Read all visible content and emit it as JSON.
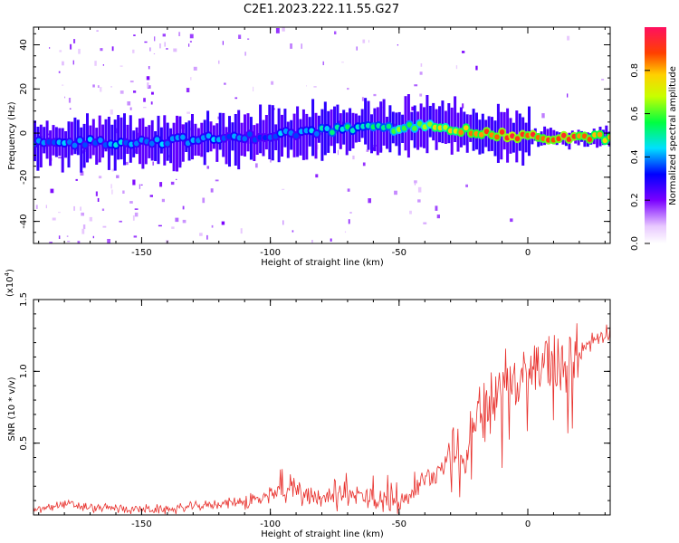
{
  "title": "C2E1.2023.222.11.55.G27",
  "colors": {
    "snr_line": "#e8302c",
    "axis": "#000000",
    "track_low": "#6a00ff",
    "track_high": "#ff0000"
  },
  "chart_data": [
    {
      "type": "heatmap",
      "xlabel": "Height of straight line (km)",
      "ylabel": "Frequency (Hz)",
      "xlim": [
        -192,
        32
      ],
      "ylim": [
        -50,
        48
      ],
      "x_ticks": [
        -150,
        -100,
        -50,
        0
      ],
      "x_tick_labels": [
        "-150",
        "-100",
        "-50",
        "0"
      ],
      "y_ticks": [
        40,
        20,
        0,
        -20,
        -40
      ],
      "y_tick_labels": [
        "40",
        "20",
        "0",
        "-20",
        "-40"
      ],
      "colorbar": {
        "label": "Normalized spectral amplitude",
        "range": [
          0,
          1
        ],
        "ticks": [
          0.0,
          0.2,
          0.4,
          0.6,
          0.8
        ],
        "tick_labels": [
          "0.0",
          "0.2",
          "0.4",
          "0.6",
          "0.8"
        ],
        "colormap": "rainbow"
      },
      "ridge": {
        "x": [
          -190,
          -170,
          -150,
          -130,
          -110,
          -90,
          -70,
          -50,
          -35,
          -25,
          -10,
          0,
          10,
          30
        ],
        "freq": [
          -5,
          -4,
          -4,
          -3,
          -2,
          0,
          2,
          2,
          4,
          1,
          -1,
          -2,
          -2,
          -2
        ],
        "amplitude": [
          0.4,
          0.4,
          0.4,
          0.4,
          0.35,
          0.4,
          0.5,
          0.6,
          0.7,
          0.8,
          0.9,
          0.9,
          0.9,
          0.8
        ]
      }
    },
    {
      "type": "line",
      "xlabel": "Height of straight line (km)",
      "ylabel": "SNR (10 * v/v)",
      "y_scale_label": "(x10",
      "y_scale_exponent": "4",
      "y_scale_suffix": ")",
      "xlim": [
        -192,
        32
      ],
      "ylim": [
        0,
        1.5
      ],
      "x_ticks": [
        -150,
        -100,
        -50,
        0
      ],
      "x_tick_labels": [
        "-150",
        "-100",
        "-50",
        "0"
      ],
      "y_ticks": [
        0.5,
        1.0,
        1.5
      ],
      "y_tick_labels": [
        "0.5",
        "1.0",
        "1.5"
      ],
      "series": [
        {
          "x": [
            -192,
            -185,
            -180,
            -170,
            -160,
            -150,
            -140,
            -130,
            -120,
            -110,
            -100,
            -95,
            -90,
            -85,
            -80,
            -75,
            -70,
            -65,
            -60,
            -55,
            -50,
            -45,
            -40,
            -35,
            -30,
            -25,
            -20,
            -15,
            -10,
            -5,
            0,
            5,
            10,
            15,
            20,
            25,
            32
          ],
          "y": [
            0.03,
            0.06,
            0.08,
            0.05,
            0.05,
            0.04,
            0.04,
            0.06,
            0.08,
            0.1,
            0.12,
            0.17,
            0.18,
            0.15,
            0.14,
            0.12,
            0.13,
            0.14,
            0.12,
            0.11,
            0.1,
            0.16,
            0.25,
            0.32,
            0.45,
            0.42,
            0.7,
            0.8,
            0.9,
            0.95,
            1.0,
            1.05,
            1.1,
            1.12,
            1.15,
            1.22,
            1.3
          ]
        }
      ]
    }
  ]
}
